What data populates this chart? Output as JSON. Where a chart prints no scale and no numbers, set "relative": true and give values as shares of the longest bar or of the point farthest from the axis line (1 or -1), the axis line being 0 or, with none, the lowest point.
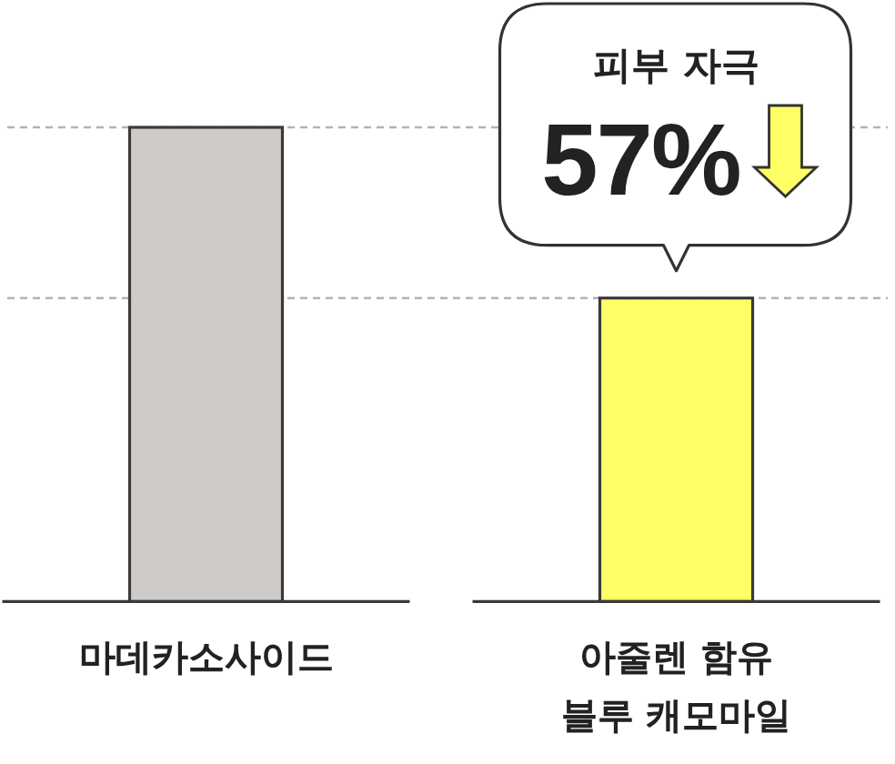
{
  "chart_data": {
    "type": "bar",
    "relative": true,
    "categories": [
      "마데카소사이드",
      "아줄렌 함유 블루 캐모마일"
    ],
    "values": [
      1,
      0.64
    ],
    "colors": [
      "#cfcbc8",
      "#ffff66"
    ],
    "ref_lines": [
      {
        "axis": "y",
        "value": 1,
        "color": "#b3b3b3",
        "line_style": "dashed"
      },
      {
        "axis": "y",
        "value": 0.64,
        "color": "#b3b3b3",
        "line_style": "dashed"
      }
    ],
    "annotations": [
      "피부 자극",
      "57%"
    ]
  }
}
